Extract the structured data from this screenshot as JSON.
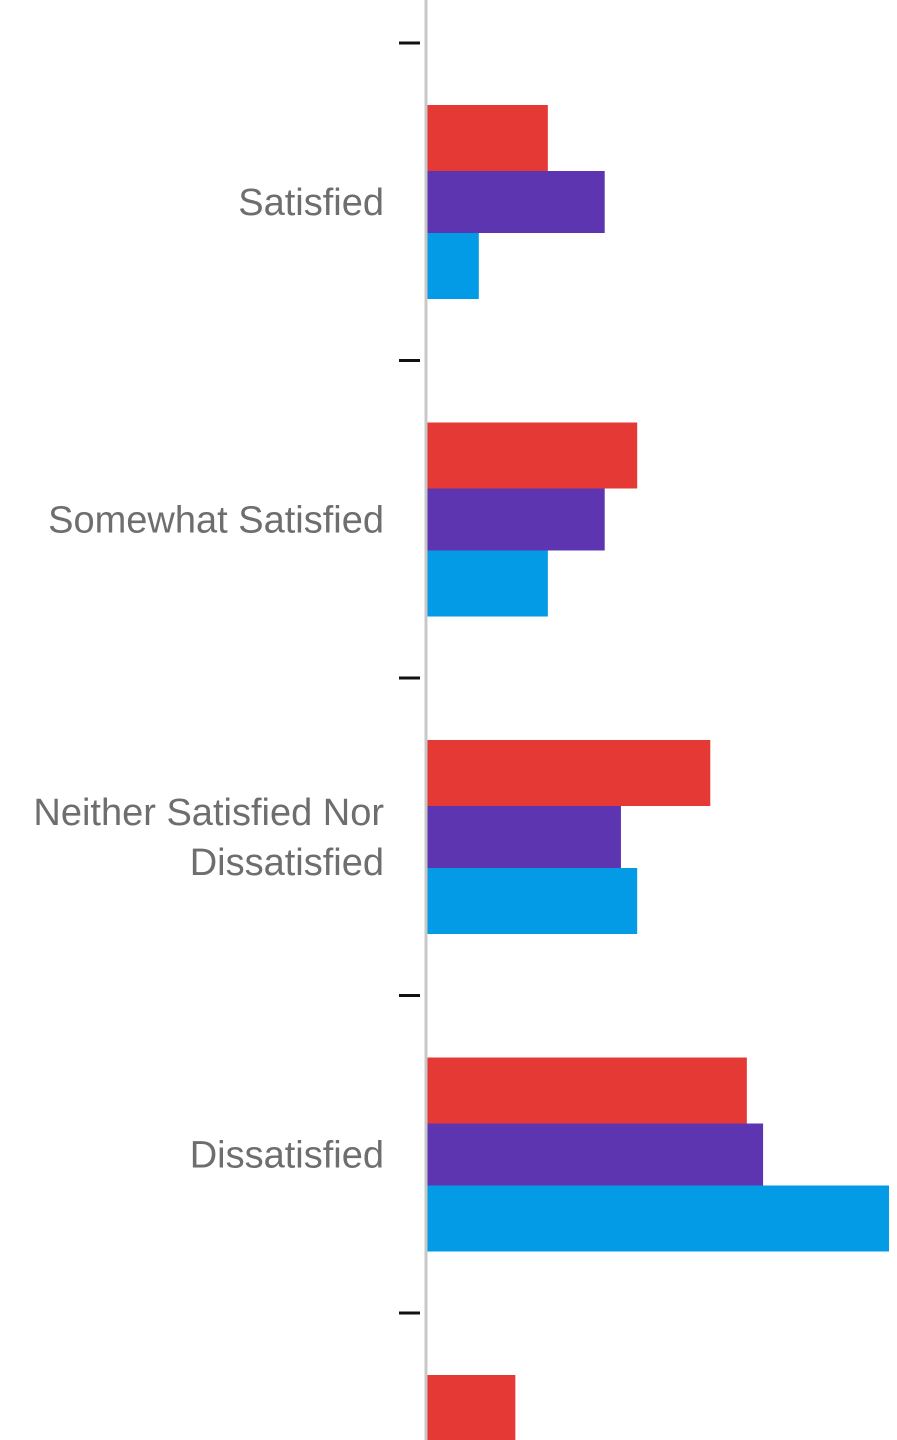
{
  "chart_data": {
    "type": "bar",
    "orientation": "horizontal",
    "categories": [
      "Satisfied",
      "Somewhat Satisfied",
      [
        "Neither Satisfied Nor",
        "Dissatisfied"
      ],
      "Dissatisfied",
      ""
    ],
    "series": [
      {
        "color": "#e53935",
        "values": [
          15,
          26,
          35,
          39.5,
          11
        ]
      },
      {
        "color": "#5e35b1",
        "values": [
          22,
          22,
          24,
          41.5,
          null
        ]
      },
      {
        "color": "#039be5",
        "values": [
          6.5,
          15,
          26,
          57,
          null
        ]
      }
    ],
    "xlim": [
      0,
      57
    ],
    "grid": false,
    "legend": "none"
  }
}
